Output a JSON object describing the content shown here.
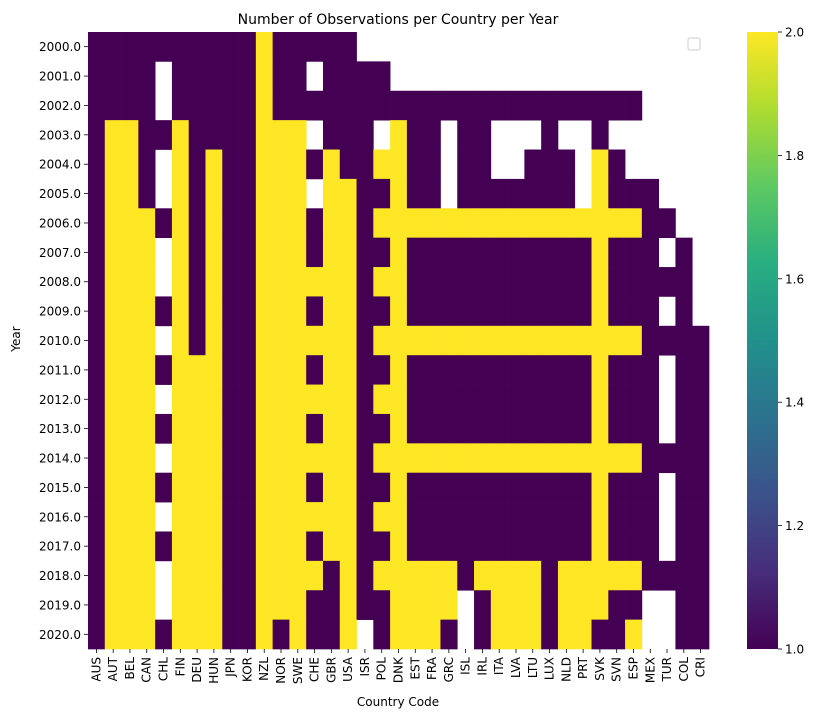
{
  "chart_data": {
    "type": "heatmap",
    "title": "Number of Observations per Country per Year",
    "xlabel": "Country Code",
    "ylabel": "Year",
    "legend_placement": "top-right",
    "legend_entries": [],
    "colormap": "viridis",
    "color_min": "#440154",
    "color_max": "#fde725",
    "colorbar_range": [
      1.0,
      2.0
    ],
    "colorbar_ticks": [
      "1.0",
      "1.2",
      "1.4",
      "1.6",
      "1.8",
      "2.0"
    ],
    "columns": [
      "AUS",
      "AUT",
      "BEL",
      "CAN",
      "CHL",
      "FIN",
      "DEU",
      "HUN",
      "JPN",
      "KOR",
      "NZL",
      "NOR",
      "SWE",
      "CHE",
      "GBR",
      "USA",
      "ISR",
      "POL",
      "DNK",
      "EST",
      "FRA",
      "GRC",
      "ISL",
      "IRL",
      "ITA",
      "LVA",
      "LTU",
      "LUX",
      "NLD",
      "PRT",
      "SVK",
      "SVN",
      "ESP",
      "MEX",
      "TUR",
      "COL",
      "CRI"
    ],
    "rows": [
      "2000.0",
      "2001.0",
      "2002.0",
      "2003.0",
      "2004.0",
      "2005.0",
      "2006.0",
      "2007.0",
      "2008.0",
      "2009.0",
      "2010.0",
      "2011.0",
      "2012.0",
      "2013.0",
      "2014.0",
      "2015.0",
      "2016.0",
      "2017.0",
      "2018.0",
      "2019.0",
      "2020.0"
    ],
    "values": [
      [
        1,
        1,
        1,
        1,
        1,
        1,
        1,
        1,
        1,
        1,
        2,
        1,
        1,
        1,
        1,
        1,
        null,
        null,
        null,
        null,
        null,
        null,
        null,
        null,
        null,
        null,
        null,
        null,
        null,
        null,
        null,
        null,
        null,
        null,
        null,
        null,
        null
      ],
      [
        1,
        1,
        1,
        1,
        null,
        1,
        1,
        1,
        1,
        1,
        2,
        1,
        1,
        null,
        1,
        1,
        1,
        1,
        null,
        null,
        null,
        null,
        null,
        null,
        null,
        null,
        null,
        null,
        null,
        null,
        null,
        null,
        null,
        null,
        null,
        null,
        null
      ],
      [
        1,
        1,
        1,
        1,
        null,
        1,
        1,
        1,
        1,
        1,
        2,
        1,
        1,
        1,
        1,
        1,
        1,
        1,
        1,
        1,
        1,
        1,
        1,
        1,
        1,
        1,
        1,
        1,
        1,
        1,
        1,
        1,
        1,
        null,
        null,
        null,
        null
      ],
      [
        1,
        2,
        2,
        1,
        1,
        2,
        1,
        1,
        1,
        1,
        2,
        2,
        2,
        null,
        1,
        1,
        1,
        null,
        2,
        1,
        1,
        null,
        1,
        1,
        null,
        null,
        null,
        1,
        null,
        null,
        1,
        null,
        null,
        null,
        null,
        null,
        null
      ],
      [
        1,
        2,
        2,
        1,
        null,
        2,
        1,
        2,
        1,
        1,
        2,
        2,
        2,
        1,
        2,
        1,
        1,
        2,
        2,
        1,
        1,
        null,
        1,
        1,
        null,
        null,
        1,
        1,
        1,
        null,
        2,
        1,
        null,
        null,
        null,
        null,
        null
      ],
      [
        1,
        2,
        2,
        1,
        null,
        2,
        1,
        2,
        1,
        1,
        2,
        2,
        2,
        null,
        2,
        2,
        1,
        1,
        2,
        1,
        1,
        null,
        1,
        1,
        1,
        1,
        1,
        1,
        1,
        null,
        2,
        1,
        1,
        1,
        null,
        null,
        null
      ],
      [
        1,
        2,
        2,
        2,
        1,
        2,
        1,
        2,
        1,
        1,
        2,
        2,
        2,
        1,
        2,
        2,
        1,
        2,
        2,
        2,
        2,
        2,
        2,
        2,
        2,
        2,
        2,
        2,
        2,
        2,
        2,
        2,
        2,
        1,
        1,
        null,
        null
      ],
      [
        1,
        2,
        2,
        2,
        null,
        2,
        1,
        2,
        1,
        1,
        2,
        2,
        2,
        1,
        2,
        2,
        1,
        1,
        2,
        1,
        1,
        1,
        1,
        1,
        1,
        1,
        1,
        1,
        1,
        1,
        2,
        1,
        1,
        1,
        null,
        1,
        null
      ],
      [
        1,
        2,
        2,
        2,
        null,
        2,
        1,
        2,
        1,
        1,
        2,
        2,
        2,
        2,
        2,
        2,
        1,
        2,
        2,
        1,
        1,
        1,
        1,
        1,
        1,
        1,
        1,
        1,
        1,
        1,
        2,
        1,
        1,
        1,
        1,
        1,
        null
      ],
      [
        1,
        2,
        2,
        2,
        1,
        2,
        1,
        2,
        1,
        1,
        2,
        2,
        2,
        1,
        2,
        2,
        1,
        1,
        2,
        1,
        1,
        1,
        1,
        1,
        1,
        1,
        1,
        1,
        1,
        1,
        2,
        1,
        1,
        1,
        null,
        1,
        null
      ],
      [
        1,
        2,
        2,
        2,
        null,
        2,
        1,
        2,
        1,
        1,
        2,
        2,
        2,
        2,
        2,
        2,
        1,
        2,
        2,
        2,
        2,
        2,
        2,
        2,
        2,
        2,
        2,
        2,
        2,
        2,
        2,
        2,
        2,
        1,
        1,
        1,
        1
      ],
      [
        1,
        2,
        2,
        2,
        1,
        2,
        2,
        2,
        1,
        1,
        2,
        2,
        2,
        1,
        2,
        2,
        1,
        1,
        2,
        1,
        1,
        1,
        1,
        1,
        1,
        1,
        1,
        1,
        1,
        1,
        2,
        1,
        1,
        1,
        null,
        1,
        1
      ],
      [
        1,
        2,
        2,
        2,
        null,
        2,
        2,
        2,
        1,
        1,
        2,
        2,
        2,
        2,
        2,
        2,
        1,
        2,
        2,
        1,
        1,
        1,
        1,
        1,
        1,
        1,
        1,
        1,
        1,
        1,
        2,
        1,
        1,
        1,
        null,
        1,
        1
      ],
      [
        1,
        2,
        2,
        2,
        1,
        2,
        2,
        2,
        1,
        1,
        2,
        2,
        2,
        1,
        2,
        2,
        1,
        1,
        2,
        1,
        1,
        1,
        1,
        1,
        1,
        1,
        1,
        1,
        1,
        1,
        2,
        1,
        1,
        1,
        null,
        1,
        1
      ],
      [
        1,
        2,
        2,
        2,
        null,
        2,
        2,
        2,
        1,
        1,
        2,
        2,
        2,
        2,
        2,
        2,
        1,
        2,
        2,
        2,
        2,
        2,
        2,
        2,
        2,
        2,
        2,
        2,
        2,
        2,
        2,
        2,
        2,
        1,
        1,
        1,
        1
      ],
      [
        1,
        2,
        2,
        2,
        1,
        2,
        2,
        2,
        1,
        1,
        2,
        2,
        2,
        1,
        2,
        2,
        1,
        1,
        2,
        1,
        1,
        1,
        1,
        1,
        1,
        1,
        1,
        1,
        1,
        1,
        2,
        1,
        1,
        1,
        null,
        1,
        1
      ],
      [
        1,
        2,
        2,
        2,
        null,
        2,
        2,
        2,
        1,
        1,
        2,
        2,
        2,
        2,
        2,
        2,
        1,
        2,
        2,
        1,
        1,
        1,
        1,
        1,
        1,
        1,
        1,
        1,
        1,
        1,
        2,
        1,
        1,
        1,
        null,
        1,
        1
      ],
      [
        1,
        2,
        2,
        2,
        1,
        2,
        2,
        2,
        1,
        1,
        2,
        2,
        2,
        1,
        2,
        2,
        1,
        1,
        2,
        1,
        1,
        1,
        1,
        1,
        1,
        1,
        1,
        1,
        1,
        1,
        2,
        1,
        1,
        1,
        null,
        1,
        1
      ],
      [
        1,
        2,
        2,
        2,
        null,
        2,
        2,
        2,
        1,
        1,
        2,
        2,
        2,
        2,
        1,
        2,
        1,
        2,
        2,
        2,
        2,
        2,
        1,
        2,
        2,
        2,
        2,
        1,
        2,
        2,
        2,
        2,
        2,
        1,
        1,
        1,
        1
      ],
      [
        1,
        2,
        2,
        2,
        null,
        2,
        2,
        2,
        1,
        1,
        2,
        2,
        2,
        1,
        1,
        2,
        1,
        1,
        2,
        2,
        2,
        2,
        null,
        1,
        2,
        2,
        2,
        1,
        2,
        2,
        2,
        1,
        1,
        null,
        null,
        1,
        1
      ],
      [
        1,
        2,
        2,
        2,
        1,
        2,
        2,
        2,
        1,
        1,
        2,
        1,
        2,
        1,
        1,
        2,
        null,
        1,
        2,
        2,
        2,
        1,
        null,
        1,
        2,
        2,
        2,
        1,
        2,
        2,
        1,
        1,
        2,
        null,
        null,
        1,
        1
      ]
    ]
  }
}
